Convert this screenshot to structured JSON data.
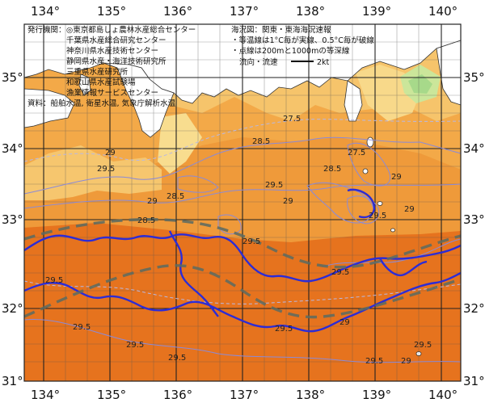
{
  "map": {
    "axes": {
      "x_labels": [
        "134°",
        "135°",
        "136°",
        "137°",
        "138°",
        "139°",
        "140°"
      ],
      "y_labels": [
        "35°",
        "34°",
        "33°",
        "32°",
        "31°"
      ]
    },
    "issuers": [
      "発行機関：",
      "◎東京都島しょ農林水産総合センター",
      "千葉県水産総合研究センター",
      "神奈川県水産技術センター",
      "静岡県水産・海洋技術研究所",
      "三重県水産研究所",
      "和歌山県水産試験場",
      "漁業情報サービスセンター"
    ],
    "sources": "資料：船舶水温, 衛星水温, 気象庁解析水温",
    "legend": {
      "title": "海況図：関東・東海海況速報",
      "iso_note": "・等温線は1°C毎が実線、0.5°C毎が破線",
      "depth_note": "・点線は200mと1000mの等深線",
      "flow_label": "流向・流速",
      "flow_unit": "2kt"
    },
    "isotherm_labels": [
      "29",
      "29.5",
      "28.5",
      "27.5"
    ],
    "colors": {
      "sea_warm": "#e6731e",
      "sea_mid": "#ef9a3a",
      "sea_cool": "#f6b657",
      "sea_cold": "#f8d98a",
      "land": "#ffffff",
      "current": "#2c2cd6",
      "axis_flow": "#5b6b62"
    }
  }
}
